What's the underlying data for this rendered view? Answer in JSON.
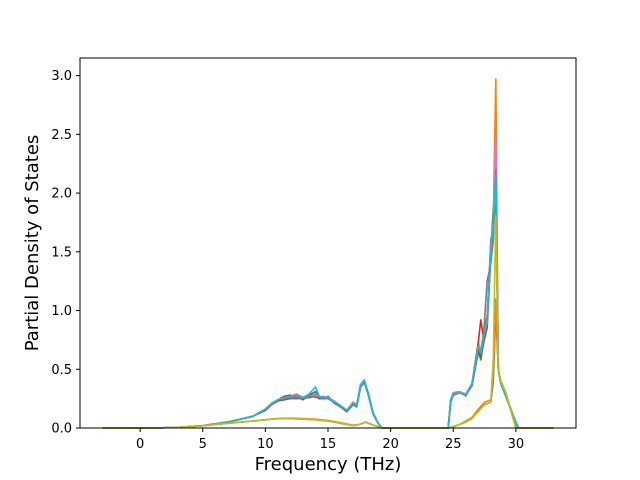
{
  "chart_data": {
    "type": "line",
    "title": "",
    "xlabel": "Frequency (THz)",
    "ylabel": "Partial Density of States",
    "xlim": [
      -4.8,
      34.8
    ],
    "ylim": [
      0.0,
      3.15
    ],
    "xticks": [
      0,
      5,
      10,
      15,
      20,
      25,
      30
    ],
    "yticks": [
      0.0,
      0.5,
      1.0,
      1.5,
      2.0,
      2.5,
      3.0
    ],
    "xtick_labels": [
      "0",
      "5",
      "10",
      "15",
      "20",
      "25",
      "30"
    ],
    "ytick_labels": [
      "0.0",
      "0.5",
      "1.0",
      "1.5",
      "2.0",
      "2.5",
      "3.0"
    ],
    "grid": false,
    "legend": "none",
    "series": [
      {
        "color": "#1f77b4",
        "x": [
          -3,
          1,
          3,
          5,
          7,
          9,
          10,
          10.5,
          11,
          11.5,
          12,
          12.5,
          13,
          13.5,
          14,
          14.3,
          14.6,
          15,
          15.5,
          16,
          16.5,
          17,
          17.3,
          17.6,
          17.9,
          18.2,
          18.6,
          19,
          19.3,
          19.6,
          24.6,
          24.8,
          25,
          25.5,
          26,
          26.5,
          27,
          27.2,
          27.4,
          27.7,
          28,
          28.2,
          28.4,
          28.6,
          28.8,
          29.2,
          29.8,
          30.2,
          33
        ],
        "y": [
          0,
          0,
          0.005,
          0.02,
          0.05,
          0.1,
          0.16,
          0.2,
          0.24,
          0.25,
          0.26,
          0.27,
          0.24,
          0.28,
          0.31,
          0.26,
          0.25,
          0.27,
          0.22,
          0.18,
          0.14,
          0.22,
          0.19,
          0.37,
          0.4,
          0.3,
          0.13,
          0.04,
          0,
          0,
          0,
          0.24,
          0.28,
          0.3,
          0.28,
          0.38,
          0.7,
          0.63,
          0.74,
          0.9,
          1.6,
          1.7,
          2.15,
          0.5,
          0.38,
          0.27,
          0.1,
          0,
          0
        ]
      },
      {
        "color": "#ff7f0e",
        "x": [
          -3,
          1,
          3,
          5,
          7,
          9,
          10,
          10.5,
          11,
          11.5,
          12,
          12.5,
          13,
          13.5,
          14,
          14.3,
          14.6,
          15,
          15.5,
          16,
          16.5,
          17,
          17.3,
          17.6,
          17.9,
          18.2,
          18.6,
          19,
          19.3,
          19.6,
          24.6,
          24.8,
          25,
          25.5,
          26,
          26.5,
          27,
          27.2,
          27.4,
          27.7,
          28,
          28.2,
          28.4,
          28.6,
          28.8,
          29.2,
          29.8,
          30.2,
          33
        ],
        "y": [
          0,
          0,
          0.005,
          0.02,
          0.05,
          0.1,
          0.16,
          0.21,
          0.24,
          0.26,
          0.25,
          0.27,
          0.25,
          0.27,
          0.29,
          0.26,
          0.27,
          0.25,
          0.22,
          0.19,
          0.15,
          0.21,
          0.2,
          0.36,
          0.41,
          0.29,
          0.12,
          0.04,
          0,
          0,
          0,
          0.22,
          0.3,
          0.31,
          0.27,
          0.37,
          0.72,
          0.66,
          0.8,
          0.95,
          1.45,
          1.8,
          2.97,
          0.5,
          0.39,
          0.28,
          0.1,
          0,
          0
        ]
      },
      {
        "color": "#2ca02c",
        "x": [
          -3,
          1,
          3,
          5,
          7,
          9,
          10,
          10.5,
          11,
          11.5,
          12,
          12.5,
          13,
          13.5,
          14,
          14.3,
          14.6,
          15,
          15.5,
          16,
          16.5,
          17,
          17.3,
          17.6,
          17.9,
          18.2,
          18.6,
          19,
          19.3,
          19.6,
          24.6,
          24.8,
          25,
          25.5,
          26,
          26.5,
          27,
          27.2,
          27.4,
          27.7,
          28,
          28.2,
          28.4,
          28.6,
          28.8,
          29.2,
          29.8,
          30.2,
          33
        ],
        "y": [
          0,
          0,
          0.005,
          0.02,
          0.05,
          0.1,
          0.15,
          0.2,
          0.23,
          0.25,
          0.26,
          0.25,
          0.26,
          0.26,
          0.28,
          0.25,
          0.26,
          0.26,
          0.21,
          0.18,
          0.14,
          0.2,
          0.18,
          0.35,
          0.39,
          0.3,
          0.13,
          0.04,
          0,
          0,
          0,
          0.23,
          0.29,
          0.3,
          0.29,
          0.36,
          0.65,
          0.58,
          0.71,
          0.85,
          1.5,
          1.87,
          2.1,
          0.5,
          0.38,
          0.27,
          0.1,
          0,
          0
        ]
      },
      {
        "color": "#d62728",
        "x": [
          -3,
          1,
          3,
          5,
          7,
          9,
          10,
          10.5,
          11,
          11.5,
          12,
          12.5,
          13,
          13.5,
          14,
          14.3,
          14.6,
          15,
          15.5,
          16,
          16.5,
          17,
          17.3,
          17.6,
          17.9,
          18.2,
          18.6,
          19,
          19.3,
          19.6,
          24.6,
          24.8,
          25,
          25.5,
          26,
          26.5,
          27,
          27.2,
          27.4,
          27.7,
          28,
          28.2,
          28.4,
          28.6,
          28.8,
          29.2,
          29.8,
          30.2,
          33
        ],
        "y": [
          0,
          0,
          0.005,
          0.02,
          0.05,
          0.1,
          0.16,
          0.21,
          0.24,
          0.27,
          0.28,
          0.26,
          0.25,
          0.27,
          0.27,
          0.25,
          0.26,
          0.25,
          0.23,
          0.19,
          0.15,
          0.22,
          0.2,
          0.37,
          0.4,
          0.3,
          0.12,
          0.04,
          0,
          0,
          0,
          0.24,
          0.3,
          0.31,
          0.28,
          0.38,
          0.73,
          0.92,
          0.78,
          0.95,
          1.55,
          1.75,
          2.2,
          0.5,
          0.39,
          0.28,
          0.1,
          0,
          0
        ]
      },
      {
        "color": "#9467bd",
        "x": [
          -3,
          1,
          3,
          5,
          7,
          9,
          10,
          10.5,
          11,
          11.5,
          12,
          12.5,
          13,
          13.5,
          14,
          14.3,
          14.6,
          15,
          15.5,
          16,
          16.5,
          17,
          17.3,
          17.6,
          17.9,
          18.2,
          18.6,
          19,
          19.3,
          19.6,
          24.6,
          24.8,
          25,
          25.5,
          26,
          26.5,
          27,
          27.2,
          27.4,
          27.7,
          28,
          28.2,
          28.4,
          28.6,
          28.8,
          29.2,
          29.8,
          30.2,
          33
        ],
        "y": [
          0,
          0,
          0.005,
          0.02,
          0.05,
          0.1,
          0.16,
          0.2,
          0.24,
          0.25,
          0.27,
          0.26,
          0.26,
          0.28,
          0.26,
          0.27,
          0.25,
          0.26,
          0.22,
          0.18,
          0.15,
          0.21,
          0.19,
          0.36,
          0.4,
          0.29,
          0.12,
          0.04,
          0,
          0,
          0,
          0.23,
          0.29,
          0.3,
          0.28,
          0.37,
          0.68,
          0.62,
          0.75,
          0.88,
          1.5,
          1.7,
          2.1,
          0.5,
          0.38,
          0.27,
          0.1,
          0,
          0
        ]
      },
      {
        "color": "#8c564b",
        "x": [
          -3,
          1,
          3,
          5,
          7,
          9,
          10,
          10.5,
          11,
          11.5,
          12,
          12.5,
          13,
          13.5,
          14,
          14.3,
          14.6,
          15,
          15.5,
          16,
          16.5,
          17,
          17.3,
          17.6,
          17.9,
          18.2,
          18.6,
          19,
          19.3,
          19.6,
          24.6,
          24.8,
          25,
          25.5,
          26,
          26.5,
          27,
          27.2,
          27.4,
          27.7,
          28,
          28.2,
          28.4,
          28.6,
          28.8,
          29.2,
          29.8,
          30.2,
          33
        ],
        "y": [
          0,
          0,
          0.005,
          0.02,
          0.05,
          0.1,
          0.15,
          0.2,
          0.23,
          0.24,
          0.25,
          0.25,
          0.25,
          0.26,
          0.27,
          0.25,
          0.25,
          0.25,
          0.22,
          0.18,
          0.14,
          0.2,
          0.19,
          0.35,
          0.39,
          0.29,
          0.12,
          0.04,
          0,
          0,
          0,
          0.22,
          0.28,
          0.3,
          0.28,
          0.36,
          0.66,
          0.6,
          0.72,
          0.86,
          1.45,
          1.65,
          2.05,
          0.5,
          0.38,
          0.27,
          0.1,
          0,
          0
        ]
      },
      {
        "color": "#e377c2",
        "x": [
          -3,
          1,
          3,
          5,
          7,
          9,
          10,
          10.5,
          11,
          11.5,
          12,
          12.5,
          13,
          13.5,
          14,
          14.3,
          14.6,
          15,
          15.5,
          16,
          16.5,
          17,
          17.3,
          17.6,
          17.9,
          18.2,
          18.6,
          19,
          19.3,
          19.6,
          24.6,
          24.8,
          25,
          25.5,
          26,
          26.5,
          27,
          27.2,
          27.4,
          27.7,
          28,
          28.2,
          28.4,
          28.6,
          28.8,
          29.2,
          29.8,
          30.2,
          33
        ],
        "y": [
          0,
          0,
          0.005,
          0.02,
          0.05,
          0.1,
          0.16,
          0.21,
          0.24,
          0.26,
          0.27,
          0.29,
          0.26,
          0.27,
          0.28,
          0.26,
          0.27,
          0.26,
          0.23,
          0.19,
          0.15,
          0.22,
          0.2,
          0.37,
          0.41,
          0.3,
          0.13,
          0.04,
          0,
          0,
          0,
          0.24,
          0.3,
          0.31,
          0.29,
          0.38,
          0.7,
          0.65,
          0.77,
          0.92,
          1.55,
          1.75,
          2.5,
          0.5,
          0.39,
          0.28,
          0.1,
          0,
          0
        ]
      },
      {
        "color": "#7f7f7f",
        "x": [
          -3,
          1,
          3,
          5,
          7,
          9,
          10,
          10.5,
          11,
          11.5,
          12,
          12.5,
          13,
          13.5,
          14,
          14.3,
          14.6,
          15,
          15.5,
          16,
          16.5,
          17,
          17.3,
          17.6,
          17.9,
          18.2,
          18.6,
          19,
          19.3,
          19.6,
          24.6,
          24.8,
          25,
          25.5,
          26,
          26.5,
          27,
          27.2,
          27.4,
          27.7,
          28,
          28.2,
          28.4,
          28.6,
          28.8,
          29.2,
          29.8,
          30.2,
          33
        ],
        "y": [
          0,
          0,
          0.005,
          0.02,
          0.05,
          0.1,
          0.16,
          0.2,
          0.24,
          0.25,
          0.26,
          0.26,
          0.25,
          0.27,
          0.27,
          0.26,
          0.26,
          0.25,
          0.22,
          0.18,
          0.15,
          0.21,
          0.19,
          0.36,
          0.4,
          0.29,
          0.12,
          0.04,
          0,
          0,
          0,
          0.23,
          0.29,
          0.3,
          0.28,
          0.37,
          0.69,
          0.63,
          0.76,
          1.25,
          1.4,
          1.6,
          2.2,
          0.5,
          0.38,
          0.27,
          0.1,
          0,
          0
        ]
      },
      {
        "color": "#17becf",
        "x": [
          -3,
          1,
          3,
          5,
          7,
          9,
          10,
          10.5,
          11,
          11.5,
          12,
          12.5,
          13,
          13.5,
          14,
          14.3,
          14.6,
          15,
          15.5,
          16,
          16.5,
          17,
          17.3,
          17.6,
          17.9,
          18.2,
          18.6,
          19,
          19.3,
          19.6,
          24.6,
          24.8,
          25,
          25.5,
          26,
          26.5,
          27,
          27.2,
          27.4,
          27.7,
          28,
          28.2,
          28.4,
          28.6,
          28.8,
          29.2,
          29.8,
          30.2,
          33
        ],
        "y": [
          0,
          0,
          0.005,
          0.02,
          0.05,
          0.1,
          0.16,
          0.21,
          0.24,
          0.26,
          0.27,
          0.28,
          0.26,
          0.29,
          0.35,
          0.27,
          0.26,
          0.26,
          0.22,
          0.19,
          0.15,
          0.21,
          0.19,
          0.36,
          0.4,
          0.3,
          0.12,
          0.04,
          0,
          0,
          0,
          0.23,
          0.29,
          0.3,
          0.28,
          0.37,
          0.7,
          0.64,
          0.76,
          0.9,
          1.5,
          1.72,
          2.15,
          0.5,
          0.38,
          0.27,
          0.1,
          0,
          0
        ]
      },
      {
        "color": "#1f77b4",
        "x": [
          -3,
          1,
          3,
          5,
          7,
          9,
          10,
          10.5,
          11,
          12,
          13,
          14,
          15,
          16,
          17,
          17.5,
          18,
          18.5,
          19,
          19.3,
          24.6,
          25,
          25.5,
          26,
          26.5,
          27,
          27.5,
          28,
          28.2,
          28.4,
          28.6,
          28.8,
          29.2,
          29.6,
          30,
          33
        ],
        "y": [
          0,
          0,
          0.005,
          0.02,
          0.04,
          0.06,
          0.07,
          0.075,
          0.08,
          0.08,
          0.075,
          0.07,
          0.06,
          0.04,
          0.02,
          0.03,
          0.05,
          0.03,
          0.01,
          0,
          0,
          0.01,
          0.03,
          0.05,
          0.08,
          0.15,
          0.2,
          0.22,
          0.4,
          1.0,
          0.5,
          0.4,
          0.3,
          0.15,
          0,
          0
        ]
      },
      {
        "color": "#ff7f0e",
        "x": [
          -3,
          1,
          3,
          5,
          7,
          9,
          10,
          10.5,
          11,
          12,
          13,
          14,
          15,
          16,
          17,
          17.5,
          18,
          18.5,
          19,
          19.3,
          24.6,
          25,
          25.5,
          26,
          26.5,
          27,
          27.5,
          28,
          28.2,
          28.4,
          28.6,
          28.8,
          29.2,
          29.6,
          30,
          33
        ],
        "y": [
          0,
          0,
          0.005,
          0.02,
          0.04,
          0.06,
          0.07,
          0.075,
          0.08,
          0.085,
          0.08,
          0.075,
          0.065,
          0.045,
          0.025,
          0.03,
          0.05,
          0.03,
          0.01,
          0,
          0,
          0.01,
          0.03,
          0.06,
          0.09,
          0.16,
          0.22,
          0.24,
          0.45,
          1.1,
          0.5,
          0.4,
          0.3,
          0.15,
          0,
          0
        ]
      },
      {
        "color": "#bcbd22",
        "x": [
          -3,
          1,
          3,
          5,
          7,
          9,
          10,
          10.5,
          11,
          12,
          13,
          14,
          15,
          16,
          17,
          17.5,
          18,
          18.5,
          19,
          19.3,
          24.6,
          25,
          25.5,
          26,
          26.5,
          27,
          27.5,
          28,
          28.2,
          28.4,
          28.6,
          28.8,
          29.2,
          29.6,
          30,
          33
        ],
        "y": [
          0,
          0,
          0.005,
          0.02,
          0.04,
          0.06,
          0.07,
          0.075,
          0.08,
          0.08,
          0.075,
          0.07,
          0.06,
          0.04,
          0.02,
          0.03,
          0.05,
          0.03,
          0.01,
          0,
          0,
          0.01,
          0.03,
          0.05,
          0.08,
          0.14,
          0.2,
          0.22,
          0.6,
          1.8,
          0.5,
          0.4,
          0.3,
          0.15,
          0,
          0
        ]
      }
    ]
  }
}
